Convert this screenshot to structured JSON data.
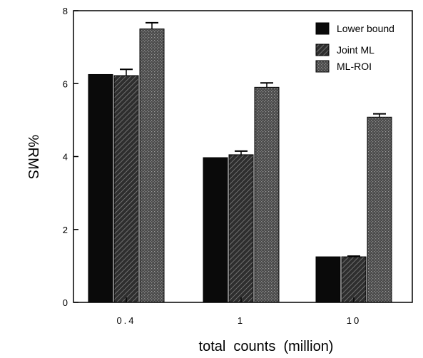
{
  "chart_data": {
    "type": "bar",
    "categories": [
      "0.4",
      "1",
      "10"
    ],
    "xlabel": "total  counts  (million)",
    "ylabel": "%RMS",
    "ylim": [
      0,
      8
    ],
    "yticks": [
      "0",
      "2",
      "4",
      "6",
      "8"
    ],
    "grid": false,
    "legend_position": "top-right",
    "series": [
      {
        "name": "Lower bound",
        "values": [
          6.25,
          3.97,
          1.25
        ],
        "errors": [
          0,
          0,
          0
        ],
        "color": "#0a0a0a",
        "pattern": "solid"
      },
      {
        "name": "Joint ML",
        "values": [
          6.22,
          4.05,
          1.25
        ],
        "errors": [
          0.17,
          0.1,
          0.02
        ],
        "color": "#3a3a3a",
        "pattern": "hatch"
      },
      {
        "name": "ML-ROI",
        "values": [
          7.5,
          5.9,
          5.08
        ],
        "errors": [
          0.17,
          0.12,
          0.09
        ],
        "color": "#5a5a5a",
        "pattern": "dots"
      }
    ]
  }
}
